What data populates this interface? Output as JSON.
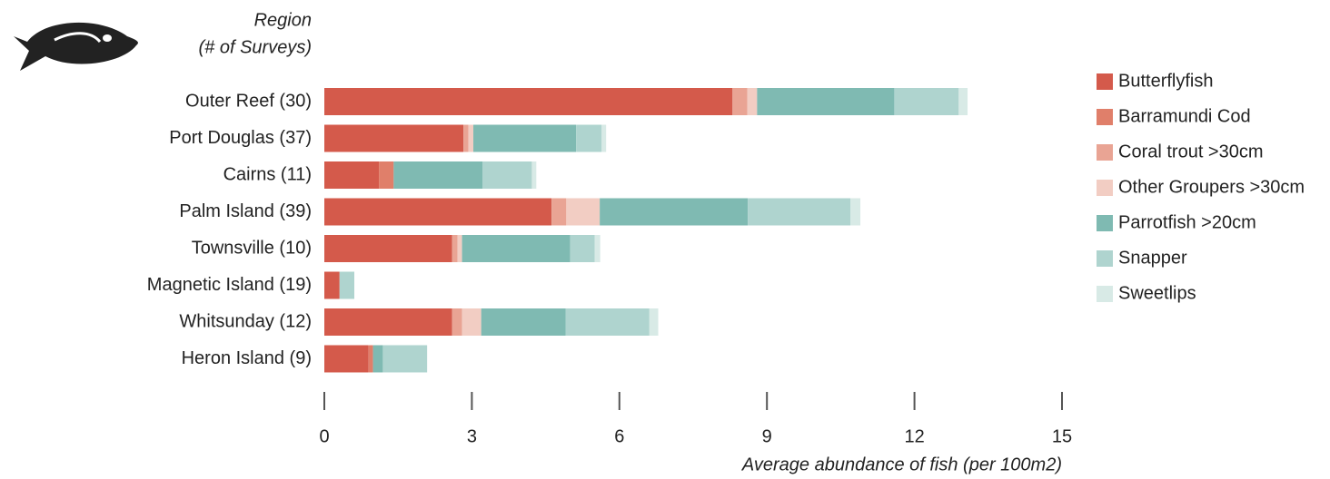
{
  "chart_data": {
    "type": "stacked-bar-horizontal",
    "y_label_lines": [
      "Region",
      "(# of Surveys)"
    ],
    "x_label": "Average abundance of fish (per 100m2)",
    "categories": [
      "Outer Reef (30)",
      "Port Douglas (37)",
      "Cairns (11)",
      "Palm Island (39)",
      "Townsville (10)",
      "Magnetic Island (19)",
      "Whitsunday (12)",
      "Heron Island (9)"
    ],
    "series": [
      {
        "name": "Butterflyfish",
        "color": "#d45a4b",
        "values": [
          8.3,
          2.83,
          1.11,
          4.62,
          2.6,
          0.31,
          2.6,
          0.9
        ]
      },
      {
        "name": "Barramundi Cod",
        "color": "#e07f6a",
        "values": [
          0,
          0,
          0.3,
          0,
          0,
          0,
          0,
          0.09
        ]
      },
      {
        "name": "Coral trout >30cm",
        "color": "#e9a494",
        "values": [
          0.3,
          0.1,
          0,
          0.3,
          0.11,
          0,
          0.2,
          0
        ]
      },
      {
        "name": "Other Groupers >30cm",
        "color": "#f2cdc3",
        "values": [
          0.2,
          0.1,
          0,
          0.68,
          0.09,
          0,
          0.39,
          0
        ]
      },
      {
        "name": "Parrotfish >20cm",
        "color": "#7fbab2",
        "values": [
          2.79,
          2.09,
          1.81,
          3.01,
          2.2,
          0,
          1.72,
          0.2
        ]
      },
      {
        "name": "Snapper",
        "color": "#afd4cf",
        "values": [
          1.31,
          0.52,
          1.0,
          2.09,
          0.5,
          0.3,
          1.7,
          0.9
        ]
      },
      {
        "name": "Sweetlips",
        "color": "#d8eae6",
        "values": [
          0.18,
          0.09,
          0.09,
          0.2,
          0.11,
          0,
          0.18,
          0
        ]
      }
    ],
    "xlim": [
      0,
      15
    ],
    "xticks": [
      0,
      3,
      6,
      9,
      12,
      15
    ]
  }
}
